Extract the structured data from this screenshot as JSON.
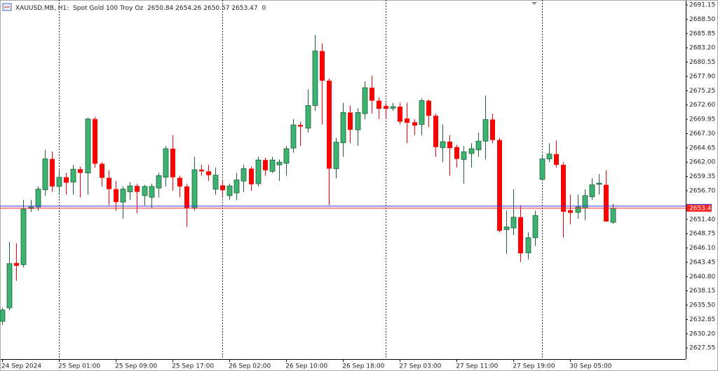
{
  "chart_data": {
    "type": "candlestick",
    "symbol": "XAUUSD.MB, H1:",
    "description": "Spot Gold 100 Troy Oz",
    "volume": 0,
    "up_color": "#3cb371",
    "up_edge": "#1d5e38",
    "down_color": "#ff0000",
    "bid_color": "#ff2020",
    "ask_color": "#3030ff",
    "ask": 2653.85,
    "ylim": [
      2625.5,
      2692.06
    ],
    "yticks": [
      2691.15,
      {
        "value": 2688.5,
        "label": "2688.50"
      },
      2685.85,
      {
        "value": 2683.2,
        "label": "2683.20"
      },
      2680.55,
      {
        "value": 2677.9,
        "label": "2677.90"
      },
      2675.25,
      {
        "value": 2672.6,
        "label": "2672.60"
      },
      2669.95,
      {
        "value": 2667.3,
        "label": "2667.30"
      },
      2664.65,
      {
        "value": 2662,
        "label": "2662.00"
      },
      2659.35,
      {
        "value": 2656.7,
        "label": "2656.70"
      },
      {
        "value": 2651.4,
        "label": "2651.40"
      },
      2648.75,
      {
        "value": 2646.1,
        "label": "2646.10"
      },
      2643.45,
      {
        "value": 2640.8,
        "label": "2640.80"
      },
      2638.15,
      {
        "value": 2635.5,
        "label": "2635.50"
      },
      2632.85,
      {
        "value": 2630.2,
        "label": "2630.20"
      },
      2627.55
    ],
    "categories": [
      "24 Sep 2024",
      null,
      null,
      null,
      null,
      null,
      null,
      null,
      "25 Sep 01:00",
      null,
      null,
      null,
      null,
      null,
      null,
      null,
      "25 Sep 09:00",
      null,
      null,
      null,
      null,
      null,
      null,
      null,
      "25 Sep 17:00",
      null,
      null,
      null,
      null,
      null,
      null,
      null,
      "26 Sep 02:00",
      null,
      null,
      null,
      null,
      null,
      null,
      null,
      "26 Sep 10:00",
      null,
      null,
      null,
      null,
      null,
      null,
      null,
      "26 Sep 18:00",
      null,
      null,
      null,
      null,
      null,
      null,
      null,
      "27 Sep 03:00",
      null,
      null,
      null,
      null,
      null,
      null,
      null,
      "27 Sep 11:00",
      null,
      null,
      null,
      null,
      null,
      null,
      null,
      "27 Sep 19:00",
      null,
      null,
      null,
      null,
      null,
      null,
      null,
      "30 Sep 05:00",
      null,
      null,
      null,
      null,
      null,
      null
    ],
    "open": [
      2632.5,
      2635.0,
      2643.3,
      2643,
      2653.4,
      2653.7,
      2656.9,
      2662.6,
      2657.5,
      2659.2,
      2658.3,
      2660.7,
      2660,
      2670,
      2661.7,
      2659.1,
      2657,
      2654.6,
      2656.5,
      2657.6,
      2655.8,
      2655.5,
      2657.2,
      2659.2,
      2664.5,
      2659.1,
      2657.5,
      2653.5,
      2660.6,
      2660.3,
      2657,
      2657.7,
      2655.8,
      2656.3,
      2658.5,
      2660.8,
      2658,
      2662.4,
      2660.3,
      2661.5,
      2661.8,
      2664.6,
      2668.9,
      2668.3,
      2672.5,
      2682.6,
      2677.1,
      2660.8,
      2665.6,
      2671.2,
      2668,
      2671,
      2675.8,
      2673.4,
      2672.4,
      2672,
      2672.3,
      2670.1,
      2669.4,
      2669,
      2673.4,
      2670.6,
      2664.7,
      2665.8,
      2664.8,
      2662.5,
      2663.6,
      2664.3,
      2665.9,
      2669.9,
      2666.1,
      2649.5,
      2649.8,
      2651.8,
      2645.2,
      2648,
      2658.8,
      2662.6,
      2663.5,
      2661.5,
      2653.1,
      2652.7,
      2653.5,
      2655.6,
      2657.9,
      2657.8,
      2650.84
    ],
    "high": [
      2635,
      2647.2,
      2647,
      2655,
      2655,
      2657.5,
      2664.3,
      2664,
      2660.5,
      2660,
      2661.5,
      2661.2,
      2670.3,
      2670.4,
      2662,
      2660.5,
      2658.5,
      2657.5,
      2658.3,
      2658,
      2657.8,
      2658,
      2660,
      2665,
      2667,
      2659.5,
      2658,
      2663,
      2661.5,
      2661.5,
      2661,
      2658.5,
      2658,
      2660,
      2661.5,
      2661.2,
      2663,
      2662.8,
      2663,
      2662.5,
      2665,
      2670,
      2669.5,
      2675.5,
      2685.6,
      2684,
      2677.5,
      2666.5,
      2673,
      2672.5,
      2672,
      2677,
      2678,
      2674,
      2673,
      2673,
      2673,
      2673,
      2670,
      2673.8,
      2673.6,
      2671,
      2669,
      2667,
      2665.2,
      2665,
      2665.5,
      2667.5,
      2674.3,
      2671,
      2666.5,
      2653,
      2657,
      2654,
      2649,
      2653,
      2663.5,
      2665.5,
      2666,
      2662,
      2656,
      2656,
      2657,
      2659,
      2659.8,
      2660.5,
      2654.26
    ],
    "low": [
      2631.8,
      2634.5,
      2640,
      2642.5,
      2652.8,
      2653,
      2655.8,
      2656.5,
      2656,
      2656,
      2656,
      2655.5,
      2656,
      2661,
      2657.5,
      2654,
      2653,
      2651.5,
      2655,
      2652.5,
      2654,
      2653.5,
      2655.5,
      2657.5,
      2656.7,
      2655.5,
      2650,
      2653,
      2659.5,
      2658.5,
      2656,
      2655.5,
      2655,
      2655,
      2656.5,
      2656.7,
      2657.5,
      2659.5,
      2660,
      2658.5,
      2659.5,
      2663.8,
      2665,
      2667.5,
      2671.5,
      2669,
      2654,
      2659,
      2663,
      2665.5,
      2665,
      2670,
      2671,
      2670,
      2670,
      2671.5,
      2669,
      2665.5,
      2667,
      2667,
      2668.5,
      2663,
      2662,
      2659.5,
      2661,
      2658,
      2661,
      2663,
      2662.5,
      2665.5,
      2649,
      2645,
      2648.5,
      2643.5,
      2644,
      2646.5,
      2658.5,
      2662,
      2661,
      2648,
      2650.5,
      2651.5,
      2651.2,
      2655,
      2656,
      2651,
      2650.57
    ],
    "close": [
      2634.6,
      2643.2,
      2642.8,
      2653.3,
      2653.7,
      2657,
      2662.6,
      2657.5,
      2659.2,
      2658.2,
      2660.7,
      2660,
      2670,
      2661.7,
      2659.1,
      2657,
      2654.6,
      2657,
      2657.6,
      2656.5,
      2657.5,
      2657.5,
      2659.5,
      2664.5,
      2659.2,
      2657.5,
      2653.5,
      2660.6,
      2660.3,
      2659.6,
      2659.6,
      2656.8,
      2657.6,
      2658.7,
      2660.8,
      2657.9,
      2662.4,
      2660.5,
      2662.4,
      2662,
      2664.5,
      2668.9,
      2668.6,
      2672.5,
      2682.6,
      2677.1,
      2660.8,
      2665.7,
      2671.2,
      2668,
      2671.2,
      2675.8,
      2673.4,
      2671.9,
      2671.9,
      2672.3,
      2669.5,
      2669.3,
      2668.8,
      2673.4,
      2670.6,
      2664.8,
      2665.8,
      2664.6,
      2662.6,
      2663.9,
      2664.5,
      2665.9,
      2669.9,
      2666.1,
      2649.3,
      2650,
      2651.8,
      2645.1,
      2648,
      2652.1,
      2662.6,
      2663.5,
      2661.5,
      2652.8,
      2652.6,
      2653.7,
      2655.8,
      2657.8,
      2658.1,
      2651,
      2653.47
    ]
  }
}
